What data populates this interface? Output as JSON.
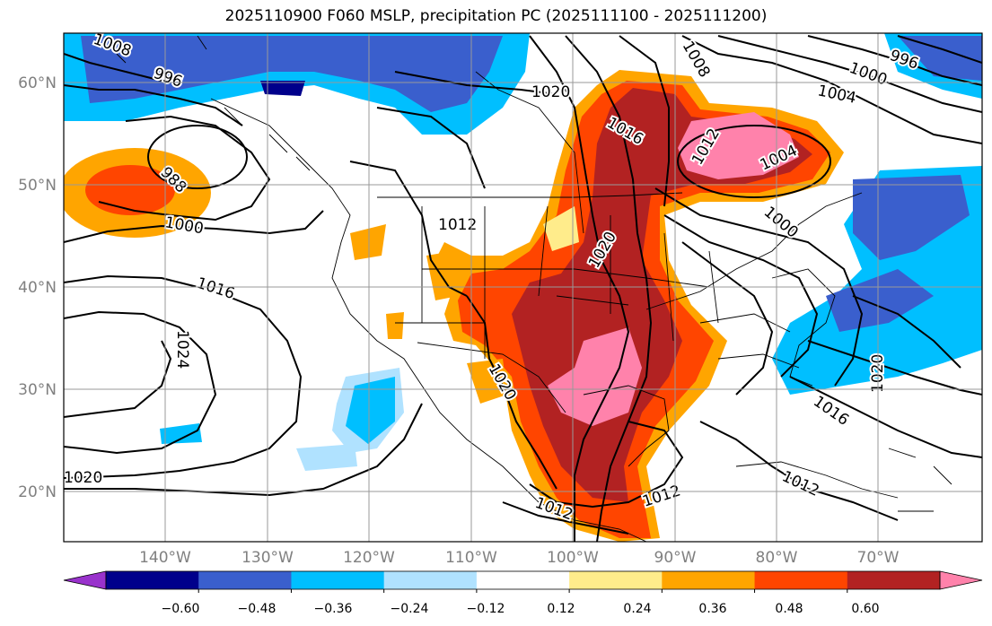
{
  "title": "2025110900 F060 MSLP, precipitation PC (2025111100 - 2025111200)",
  "lat_labels": [
    "60°N",
    "50°N",
    "40°N",
    "30°N",
    "20°N"
  ],
  "lon_labels": [
    "140°W",
    "130°W",
    "120°W",
    "110°W",
    "100°W",
    "90°W",
    "80°W",
    "70°W"
  ],
  "colorbar": {
    "colors": [
      "#9932cc",
      "#00008b",
      "#3a5fcd",
      "#00bfff",
      "#b0e2ff",
      "#ffffff",
      "#ffec8b",
      "#ffa500",
      "#ff4500",
      "#b22222",
      "#ff82ab"
    ],
    "tick_labels": [
      "−0.60",
      "−0.48",
      "−0.36",
      "−0.24",
      "−0.12",
      "0.12",
      "0.24",
      "0.36",
      "0.48",
      "0.60"
    ]
  },
  "isobar_labels": [
    {
      "text": "996"
    },
    {
      "text": "1000"
    },
    {
      "text": "1004"
    },
    {
      "text": "1020"
    },
    {
      "text": "1016"
    },
    {
      "text": "1012"
    },
    {
      "text": "1004"
    },
    {
      "text": "1000"
    },
    {
      "text": "988"
    },
    {
      "text": "1000"
    },
    {
      "text": "1012"
    },
    {
      "text": "1016"
    },
    {
      "text": "1020"
    },
    {
      "text": "1024"
    },
    {
      "text": "1020"
    },
    {
      "text": "1020"
    },
    {
      "text": "1016"
    },
    {
      "text": "1012"
    },
    {
      "text": "1012"
    },
    {
      "text": "1012"
    },
    {
      "text": "1020"
    },
    {
      "text": "1008"
    },
    {
      "text": "1008"
    },
    {
      "text": "996"
    }
  ]
}
